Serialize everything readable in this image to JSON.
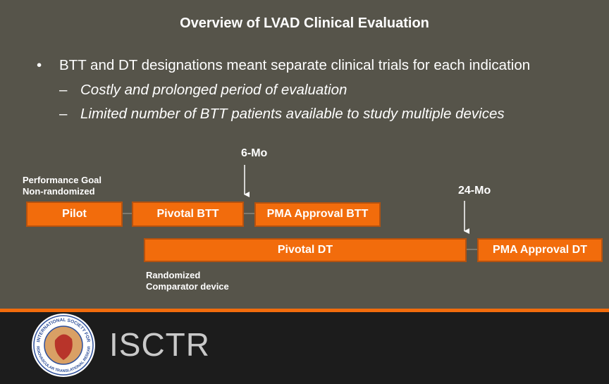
{
  "slide": {
    "title": "Overview of LVAD Clinical Evaluation",
    "bullet": "BTT and DT designations meant separate clinical trials for each indication",
    "sub_bullets": [
      "Costly and prolonged period of evaluation",
      "Limited number of BTT patients available to study multiple devices"
    ]
  },
  "diagram": {
    "marker_6mo": "6-Mo",
    "marker_24mo": "24-Mo",
    "performance_goal": [
      "Performance Goal",
      "Non-randomized"
    ],
    "randomized": [
      "Randomized",
      "Comparator device"
    ],
    "boxes": [
      "Pilot",
      "Pivotal BTT",
      "PMA Approval BTT",
      "Pivotal DT",
      "PMA Approval DT"
    ]
  },
  "footer": {
    "logo_ring_top": "INTERNATIONAL SOCIETY FOR",
    "logo_ring_bottom": "CARDIOVASCULAR TRANSLATIONAL RESEARCH",
    "brand": "ISCTR"
  }
}
